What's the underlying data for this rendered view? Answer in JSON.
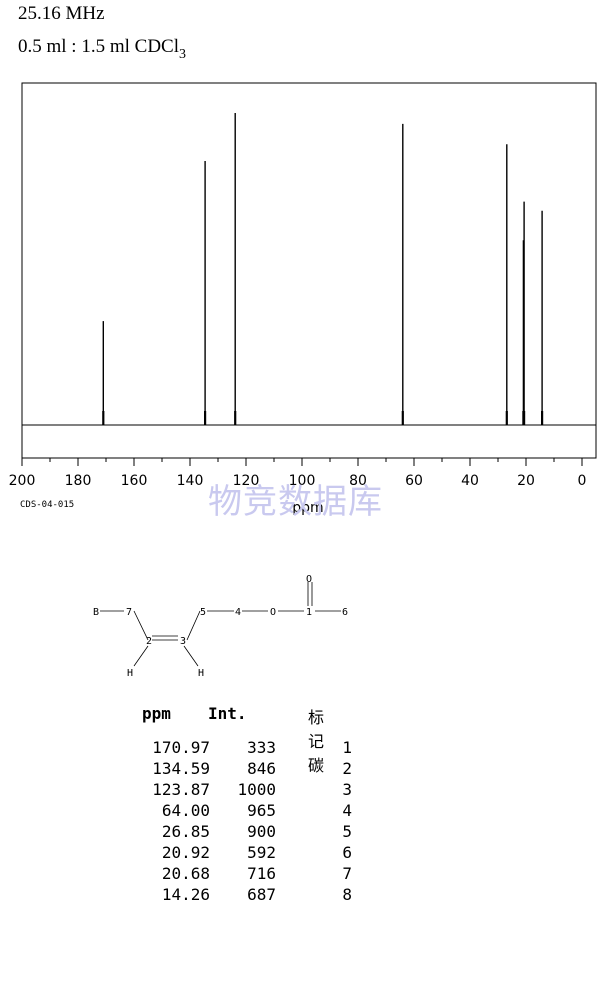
{
  "header": {
    "frequency": "25.16 MHz",
    "solvent_main": "0.5 ml : 1.5 ml CDCl",
    "solvent_sub": "3"
  },
  "spectrum_code": "CDS-04-015",
  "watermark": "物竞数据库",
  "chart_data": {
    "type": "line",
    "xlabel": "ppm",
    "xlim": [
      200,
      0
    ],
    "x_ticks": [
      "200",
      "180",
      "160",
      "140",
      "120",
      "100",
      "80",
      "60",
      "40",
      "20",
      "0"
    ],
    "peaks": [
      {
        "ppm": 170.97,
        "intensity": 333
      },
      {
        "ppm": 134.59,
        "intensity": 846
      },
      {
        "ppm": 123.87,
        "intensity": 1000
      },
      {
        "ppm": 64.0,
        "intensity": 965
      },
      {
        "ppm": 26.85,
        "intensity": 900
      },
      {
        "ppm": 20.92,
        "intensity": 592
      },
      {
        "ppm": 20.68,
        "intensity": 716
      },
      {
        "ppm": 14.26,
        "intensity": 687
      }
    ]
  },
  "structure": {
    "atoms": [
      "B",
      "7",
      "5",
      "4",
      "O",
      "1",
      "6",
      "O",
      "2",
      "3",
      "H",
      "H"
    ]
  },
  "table": {
    "headers": {
      "ppm": "ppm",
      "int": "Int.",
      "carbon": "标记碳"
    },
    "rows": [
      {
        "ppm": "170.97",
        "int": "333",
        "carbon": "1"
      },
      {
        "ppm": "134.59",
        "int": "846",
        "carbon": "2"
      },
      {
        "ppm": "123.87",
        "int": "1000",
        "carbon": "3"
      },
      {
        "ppm": "64.00",
        "int": "965",
        "carbon": "4"
      },
      {
        "ppm": "26.85",
        "int": "900",
        "carbon": "5"
      },
      {
        "ppm": "20.92",
        "int": "592",
        "carbon": "6"
      },
      {
        "ppm": "20.68",
        "int": "716",
        "carbon": "7"
      },
      {
        "ppm": "14.26",
        "int": "687",
        "carbon": "8"
      }
    ]
  }
}
